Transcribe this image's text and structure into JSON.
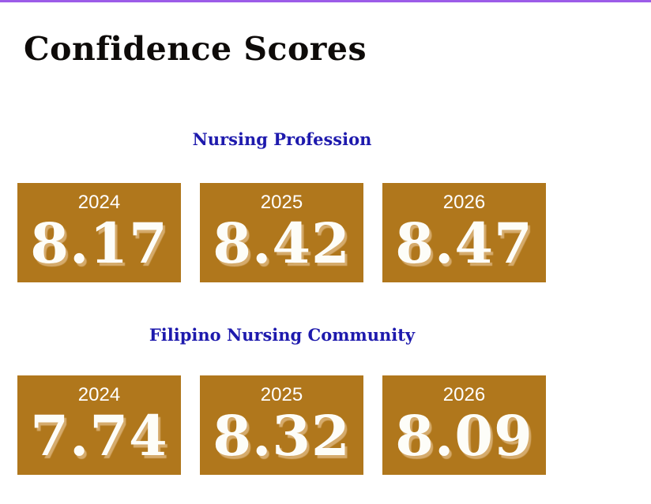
{
  "page": {
    "title": "Confidence Scores"
  },
  "sections": [
    {
      "heading": "Nursing Profession",
      "cards": [
        {
          "year": "2024",
          "score": "8.17"
        },
        {
          "year": "2025",
          "score": "8.42"
        },
        {
          "year": "2026",
          "score": "8.47"
        }
      ]
    },
    {
      "heading": "Filipino Nursing Community",
      "cards": [
        {
          "year": "2024",
          "score": "7.74"
        },
        {
          "year": "2025",
          "score": "8.32"
        },
        {
          "year": "2026",
          "score": "8.09"
        }
      ]
    }
  ],
  "colors": {
    "accent_top_bar": "#9c5ce8",
    "card_background": "#b0771c",
    "card_text": "#ffffff",
    "score_shadow": "#d5ab6c",
    "section_heading": "#1e1aad",
    "title": "#0e0b09",
    "page_background": "#ffffff"
  },
  "chart_data": {
    "type": "table",
    "title": "Confidence Scores",
    "categories": [
      "2024",
      "2025",
      "2026"
    ],
    "series": [
      {
        "name": "Nursing Profession",
        "values": [
          8.17,
          8.42,
          8.47
        ]
      },
      {
        "name": "Filipino Nursing Community",
        "values": [
          7.74,
          8.32,
          8.09
        ]
      }
    ]
  }
}
